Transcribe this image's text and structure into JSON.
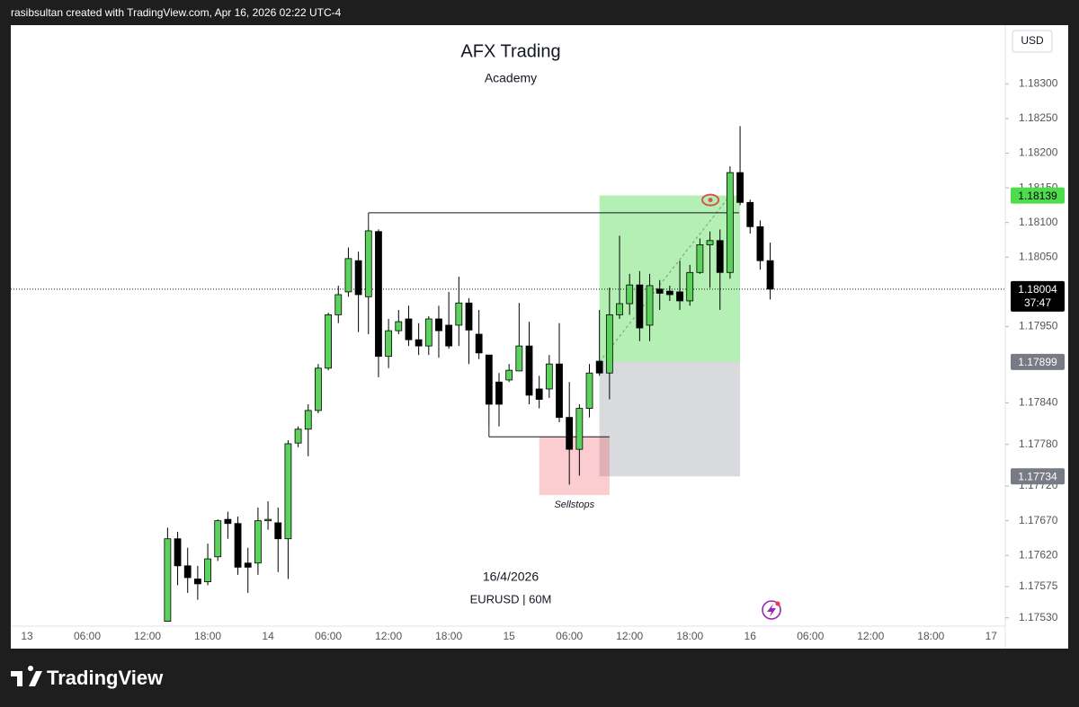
{
  "header": {
    "credit": "rasibsultan created with TradingView.com, Apr 16, 2026 02:22 UTC-4"
  },
  "chart_data": {
    "type": "candlestick",
    "title": "AFX Trading",
    "subtitle": "Academy",
    "annotations": [
      "16/4/2026",
      "EURUSD | 60M"
    ],
    "currency": "USD",
    "x_labels": [
      "13",
      "06:00",
      "12:00",
      "18:00",
      "14",
      "06:00",
      "12:00",
      "18:00",
      "15",
      "06:00",
      "12:00",
      "18:00",
      "16",
      "06:00",
      "12:00",
      "18:00",
      "17"
    ],
    "ohlc": {
      "open": [
        1.17525,
        1.17644,
        1.17605,
        1.17586,
        1.17582,
        1.17618,
        1.17672,
        1.17666,
        1.17609,
        1.17609,
        1.1767,
        1.17667,
        1.17644,
        1.17782,
        1.17802,
        1.17829,
        1.1789,
        1.17967,
        1.18,
        1.18045,
        1.17993,
        1.18087,
        1.17907,
        1.17944,
        1.17961,
        1.17931,
        1.17922,
        1.17961,
        1.17952,
        1.17952,
        1.17984,
        1.17939,
        1.17909,
        1.1787,
        1.17873,
        1.17886,
        1.17922,
        1.1786,
        1.1786,
        1.17896,
        1.17819,
        1.17773,
        1.17832,
        1.179,
        1.17883,
        1.17967,
        1.17983,
        1.1801,
        1.17952,
        1.18004,
        1.18001,
        1.18,
        1.17987,
        1.18028,
        1.18068,
        1.18074,
        1.18028,
        1.18172,
        1.18129,
        1.18094,
        1.18045
      ],
      "high": [
        1.1766,
        1.17654,
        1.17631,
        1.17605,
        1.17637,
        1.17672,
        1.17683,
        1.17676,
        1.17631,
        1.17689,
        1.17698,
        1.17689,
        1.17786,
        1.17806,
        1.17838,
        1.17896,
        1.1797,
        1.18009,
        1.18064,
        1.18058,
        1.18094,
        1.1809,
        1.17961,
        1.17974,
        1.1798,
        1.17955,
        1.17965,
        1.1798,
        1.18,
        1.18022,
        1.17991,
        1.17974,
        1.17909,
        1.17883,
        1.17896,
        1.17984,
        1.17957,
        1.17879,
        1.17909,
        1.17955,
        1.1787,
        1.17838,
        1.17896,
        1.17974,
        1.18006,
        1.18081,
        1.18026,
        1.1803,
        1.18026,
        1.18017,
        1.18009,
        1.18045,
        1.18039,
        1.18077,
        1.18087,
        1.1809,
        1.18181,
        1.18239,
        1.18133,
        1.18103,
        1.18071
      ],
      "low": [
        1.17525,
        1.17577,
        1.17566,
        1.17556,
        1.17577,
        1.17612,
        1.17644,
        1.17592,
        1.17566,
        1.17592,
        1.17657,
        1.17596,
        1.17586,
        1.17776,
        1.17763,
        1.17825,
        1.17887,
        1.17955,
        1.17993,
        1.17942,
        1.17939,
        1.17877,
        1.1789,
        1.17939,
        1.17922,
        1.17909,
        1.17909,
        1.17905,
        1.17918,
        1.17922,
        1.17896,
        1.17903,
        1.17806,
        1.17806,
        1.1787,
        1.17886,
        1.17838,
        1.17832,
        1.17847,
        1.17812,
        1.17722,
        1.17735,
        1.17819,
        1.17879,
        1.17845,
        1.17961,
        1.17967,
        1.17929,
        1.17929,
        1.17974,
        1.17987,
        1.17974,
        1.1798,
        1.18026,
        1.18006,
        1.17974,
        1.18019,
        1.18125,
        1.18084,
        1.18032,
        1.17989
      ],
      "close": [
        1.17644,
        1.17605,
        1.17588,
        1.17579,
        1.17615,
        1.1767,
        1.17666,
        1.17603,
        1.17603,
        1.1767,
        1.17672,
        1.17644,
        1.17781,
        1.17802,
        1.17829,
        1.1789,
        1.17967,
        1.17996,
        1.18048,
        1.17996,
        1.18088,
        1.17907,
        1.17944,
        1.17957,
        1.17931,
        1.17922,
        1.17961,
        1.17944,
        1.17922,
        1.17984,
        1.17945,
        1.17912,
        1.17838,
        1.17838,
        1.17887,
        1.17922,
        1.17851,
        1.17845,
        1.17896,
        1.17819,
        1.17773,
        1.17832,
        1.17883,
        1.17883,
        1.17967,
        1.17983,
        1.1801,
        1.17948,
        1.18009,
        1.17998,
        1.17996,
        1.17987,
        1.18028,
        1.18068,
        1.18074,
        1.18028,
        1.18172,
        1.18129,
        1.18094,
        1.18045,
        1.18004
      ]
    },
    "up_color": "#5bd25b",
    "down_color": "#000000",
    "ylim": [
      1.17518,
      1.18382
    ],
    "yticks": [
      {
        "value": 1.183,
        "label": "1.18300"
      },
      {
        "value": 1.1825,
        "label": "1.18250"
      },
      {
        "value": 1.182,
        "label": "1.18200"
      },
      {
        "value": 1.1815,
        "label": "1.18150"
      },
      {
        "value": 1.181,
        "label": "1.18100"
      },
      {
        "value": 1.1805,
        "label": "1.18050"
      },
      {
        "value": 1.1795,
        "label": "1.17950"
      },
      {
        "value": 1.1784,
        "label": "1.17840"
      },
      {
        "value": 1.1778,
        "label": "1.17780"
      },
      {
        "value": 1.1772,
        "label": "1.17720"
      },
      {
        "value": 1.1767,
        "label": "1.17670"
      },
      {
        "value": 1.1762,
        "label": "1.17620"
      },
      {
        "value": 1.17575,
        "label": "1.17575"
      },
      {
        "value": 1.1753,
        "label": "1.17530"
      }
    ],
    "grid": false,
    "last_price": {
      "value": 1.18004,
      "countdown": "37:47"
    },
    "position": {
      "target": 1.18139,
      "entry": 1.17899,
      "stop": 1.17734
    },
    "levels": [
      1.18114,
      1.17791
    ],
    "zone": {
      "label": "Sellstops",
      "top": 1.17791,
      "bottom": 1.17707
    }
  },
  "footer": {
    "brand": "TradingView"
  }
}
